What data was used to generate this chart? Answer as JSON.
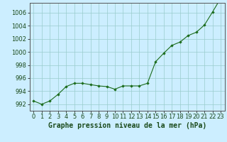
{
  "x": [
    0,
    1,
    2,
    3,
    4,
    5,
    6,
    7,
    8,
    9,
    10,
    11,
    12,
    13,
    14,
    15,
    16,
    17,
    18,
    19,
    20,
    21,
    22,
    23
  ],
  "y": [
    992.5,
    992.0,
    992.5,
    993.5,
    994.7,
    995.2,
    995.2,
    995.0,
    994.8,
    994.7,
    994.3,
    994.8,
    994.8,
    994.8,
    995.2,
    998.5,
    999.8,
    1001.0,
    1001.5,
    1002.5,
    1003.0,
    1004.1,
    1006.1,
    1008.2
  ],
  "ylim": [
    991.0,
    1007.5
  ],
  "yticks": [
    992,
    994,
    996,
    998,
    1000,
    1002,
    1004,
    1006
  ],
  "xticks": [
    0,
    1,
    2,
    3,
    4,
    5,
    6,
    7,
    8,
    9,
    10,
    11,
    12,
    13,
    14,
    15,
    16,
    17,
    18,
    19,
    20,
    21,
    22,
    23
  ],
  "line_color": "#1a6b1a",
  "marker_color": "#1a6b1a",
  "bg_color": "#cceeff",
  "grid_color": "#99cccc",
  "xlabel": "Graphe pression niveau de la mer (hPa)",
  "xlabel_fontsize": 7.0,
  "tick_fontsize": 6.0,
  "figsize": [
    3.2,
    2.0
  ],
  "dpi": 100
}
